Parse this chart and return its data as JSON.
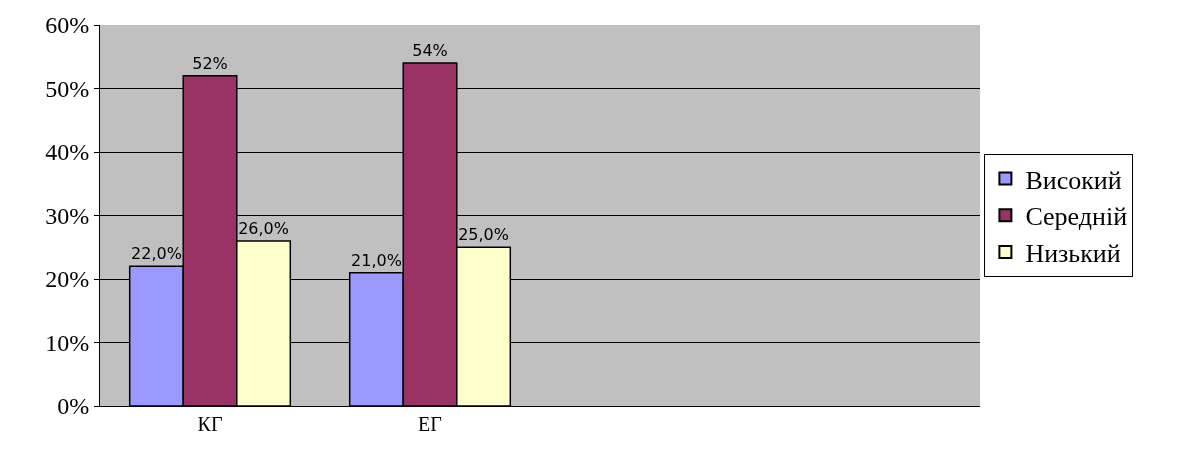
{
  "chart_data": {
    "type": "bar",
    "categories": [
      "КГ",
      "ЕГ",
      null,
      null
    ],
    "series": [
      {
        "name": "Високий",
        "color": "#9999ff",
        "values": [
          22,
          21,
          null,
          null
        ],
        "value_labels": [
          "22,0%",
          "21,0%",
          null,
          null
        ]
      },
      {
        "name": "Середній",
        "color": "#993366",
        "values": [
          52,
          54,
          null,
          null
        ],
        "value_labels": [
          "52%",
          "54%",
          null,
          null
        ]
      },
      {
        "name": "Низький",
        "color": "#ffffcc",
        "values": [
          26,
          25,
          null,
          null
        ],
        "value_labels": [
          "26,0%",
          "25,0%",
          null,
          null
        ]
      }
    ],
    "ylim": [
      0,
      60
    ],
    "yticks": [
      {
        "value": 0,
        "label": "0%"
      },
      {
        "value": 10,
        "label": "10%"
      },
      {
        "value": 20,
        "label": "20%"
      },
      {
        "value": 30,
        "label": "30%"
      },
      {
        "value": 40,
        "label": "40%"
      },
      {
        "value": 50,
        "label": "50%"
      },
      {
        "value": 60,
        "label": "60%"
      }
    ],
    "grid": "y",
    "legend": "right"
  }
}
